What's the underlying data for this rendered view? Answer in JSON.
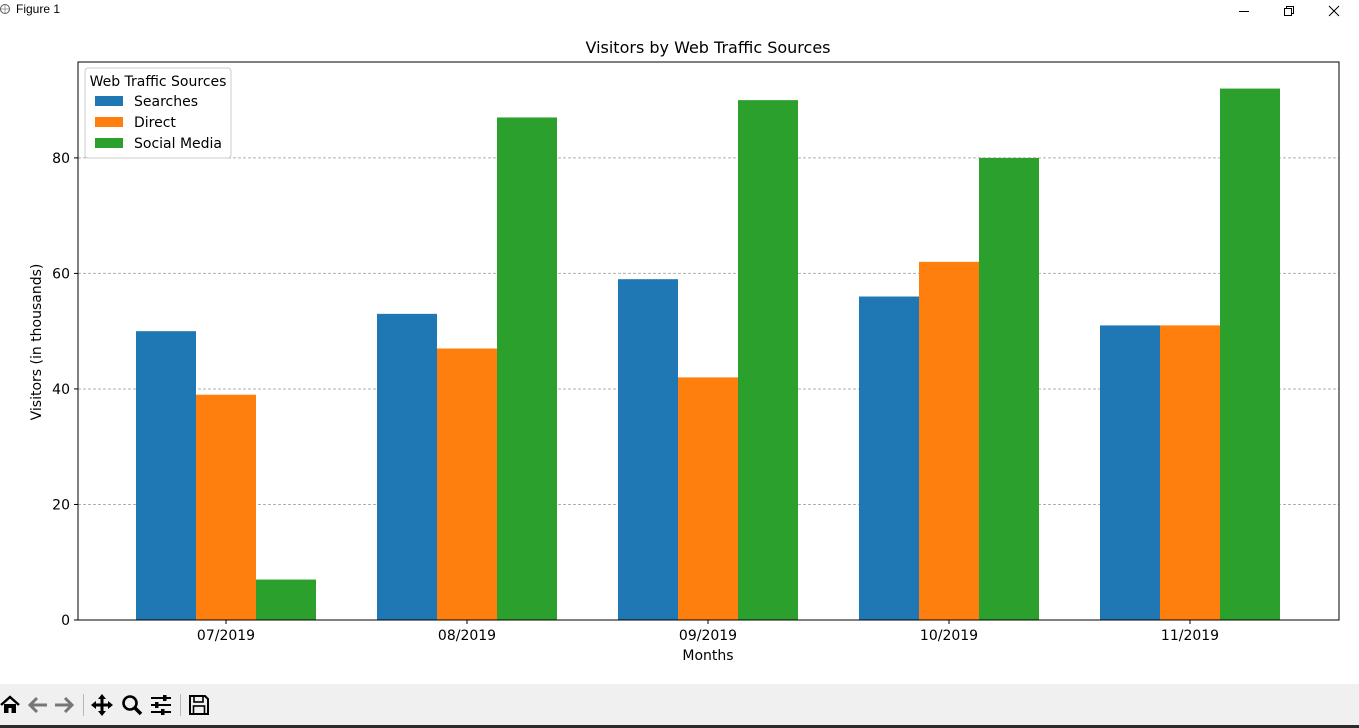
{
  "window": {
    "title": "Figure 1",
    "controls": [
      "minimize",
      "restore",
      "close"
    ]
  },
  "toolbar": {
    "buttons": [
      "home-icon",
      "back-icon",
      "forward-icon",
      "pan-icon",
      "zoom-icon",
      "configure-subplots-icon",
      "save-icon"
    ]
  },
  "chart_data": {
    "type": "bar",
    "title": "Visitors by Web Traffic Sources",
    "xlabel": "Months",
    "ylabel": "Visitors (in thousands)",
    "categories": [
      "07/2019",
      "08/2019",
      "09/2019",
      "10/2019",
      "11/2019"
    ],
    "series": [
      {
        "name": "Searches",
        "color": "#1f77b4",
        "values": [
          50,
          53,
          59,
          56,
          51
        ]
      },
      {
        "name": "Direct",
        "color": "#ff7f0e",
        "values": [
          39,
          47,
          42,
          62,
          51
        ]
      },
      {
        "name": "Social Media",
        "color": "#2ca02c",
        "values": [
          7,
          87,
          90,
          80,
          92
        ]
      }
    ],
    "ylim": [
      0,
      96.6
    ],
    "yticks": [
      0,
      20,
      40,
      60,
      80
    ],
    "grid": "y-dashed",
    "legend": {
      "title": "Web Traffic Sources",
      "placement": "top-left"
    }
  }
}
